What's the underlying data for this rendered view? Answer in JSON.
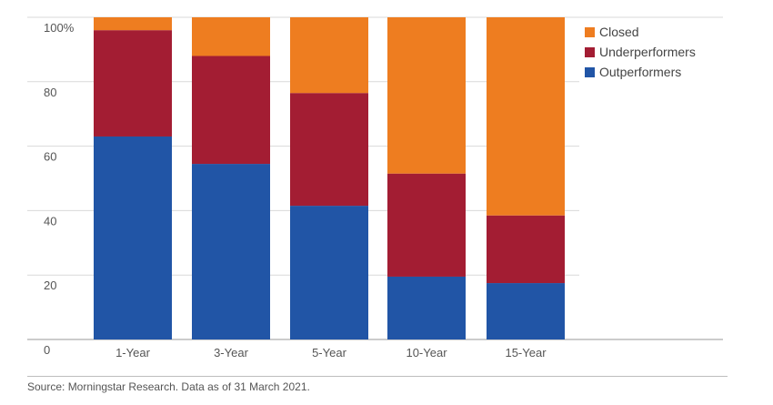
{
  "chart_data": {
    "type": "bar",
    "stacked": true,
    "categories": [
      "1-Year",
      "3-Year",
      "5-Year",
      "10-Year",
      "15-Year"
    ],
    "series": [
      {
        "name": "Outperformers",
        "color": "#2155a6",
        "values": [
          63,
          54.5,
          41.5,
          19.5,
          17.5
        ]
      },
      {
        "name": "Underperformers",
        "color": "#a31d33",
        "values": [
          33,
          33.5,
          35,
          32,
          21
        ]
      },
      {
        "name": "Closed",
        "color": "#ee7d20",
        "values": [
          4,
          12,
          23.5,
          48.5,
          61.5
        ]
      }
    ],
    "y_ticks": [
      "100%",
      "80",
      "60",
      "40",
      "20",
      "0"
    ],
    "ylim": [
      0,
      100
    ],
    "grid": true,
    "legend": {
      "position": "top-right",
      "order": [
        "Closed",
        "Underperformers",
        "Outperformers"
      ]
    }
  },
  "footer": {
    "source": "Source: Morningstar Research. Data as of 31 March 2021."
  }
}
